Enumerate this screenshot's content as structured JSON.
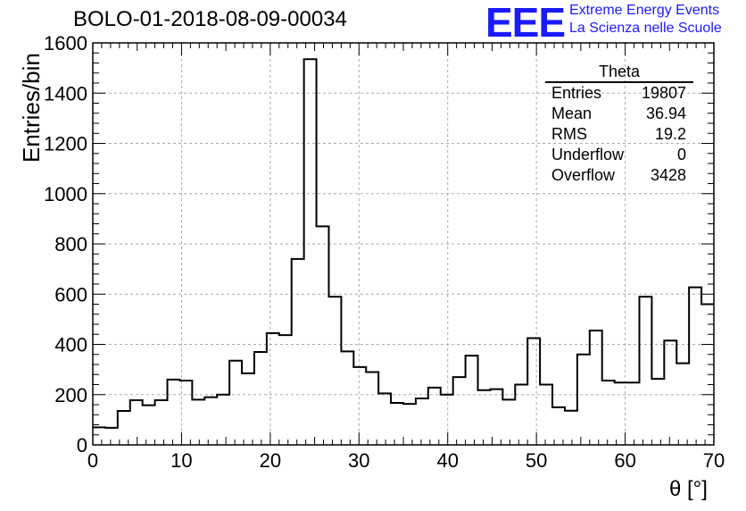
{
  "chart_data": {
    "type": "histogram",
    "title": "BOLO-01-2018-08-09-00034",
    "xlabel": "θ [°]",
    "ylabel": "Entries/bin",
    "xlim": [
      0,
      70
    ],
    "ylim": [
      0,
      1600
    ],
    "x_ticks": [
      "0",
      "10",
      "20",
      "30",
      "40",
      "50",
      "60",
      "70"
    ],
    "y_ticks": [
      "0",
      "200",
      "400",
      "600",
      "800",
      "1000",
      "1200",
      "1400",
      "1600"
    ],
    "grid": true,
    "bin_width": 1.4,
    "values": [
      70,
      68,
      135,
      178,
      158,
      178,
      260,
      256,
      180,
      190,
      200,
      335,
      285,
      370,
      445,
      437,
      740,
      1535,
      870,
      590,
      372,
      310,
      290,
      205,
      167,
      163,
      185,
      228,
      200,
      270,
      355,
      218,
      222,
      180,
      240,
      425,
      240,
      150,
      136,
      360,
      455,
      256,
      248,
      248,
      590,
      263,
      415,
      325,
      627,
      560
    ],
    "stats": {
      "name": "Theta",
      "rows": [
        {
          "label": "Entries",
          "value": "19807"
        },
        {
          "label": "Mean",
          "value": "36.94"
        },
        {
          "label": "RMS",
          "value": "19.2"
        },
        {
          "label": "Underflow",
          "value": "0"
        },
        {
          "label": "Overflow",
          "value": "3428"
        }
      ]
    }
  },
  "brand": {
    "logo_text": "EEE",
    "line1": "Extreme Energy Events",
    "line2": "La Scienza nelle Scuole",
    "color": "#1a1aff"
  }
}
